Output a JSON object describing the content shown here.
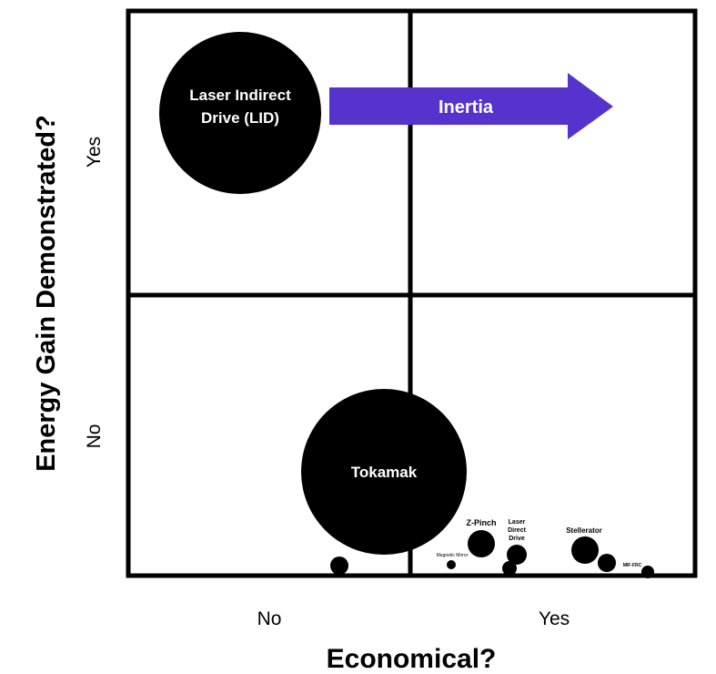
{
  "axes": {
    "x_title": "Economical?",
    "y_title": "Energy Gain Demonstrated?",
    "x_no": "No",
    "x_yes": "Yes",
    "y_no": "No",
    "y_yes": "Yes"
  },
  "bubbles": {
    "lid": {
      "line1": "Laser Indirect",
      "line2": "Drive (LID)"
    },
    "tokamak": {
      "label": "Tokamak"
    },
    "zpinch": {
      "label": "Z-Pinch"
    },
    "magnetic_mirror": {
      "label": "Magnetic Mirror"
    },
    "laser_direct": {
      "line1": "Laser",
      "line2": "Direct",
      "line3": "Drive"
    },
    "stellerator": {
      "label": "Stellerator"
    },
    "mif_frc": {
      "label": "MIF-FRC"
    }
  },
  "arrow": {
    "label": "Inertia",
    "color": "#5533cc"
  },
  "colors": {
    "ink": "#000000",
    "background": "#ffffff",
    "arrow": "#5533cc"
  }
}
